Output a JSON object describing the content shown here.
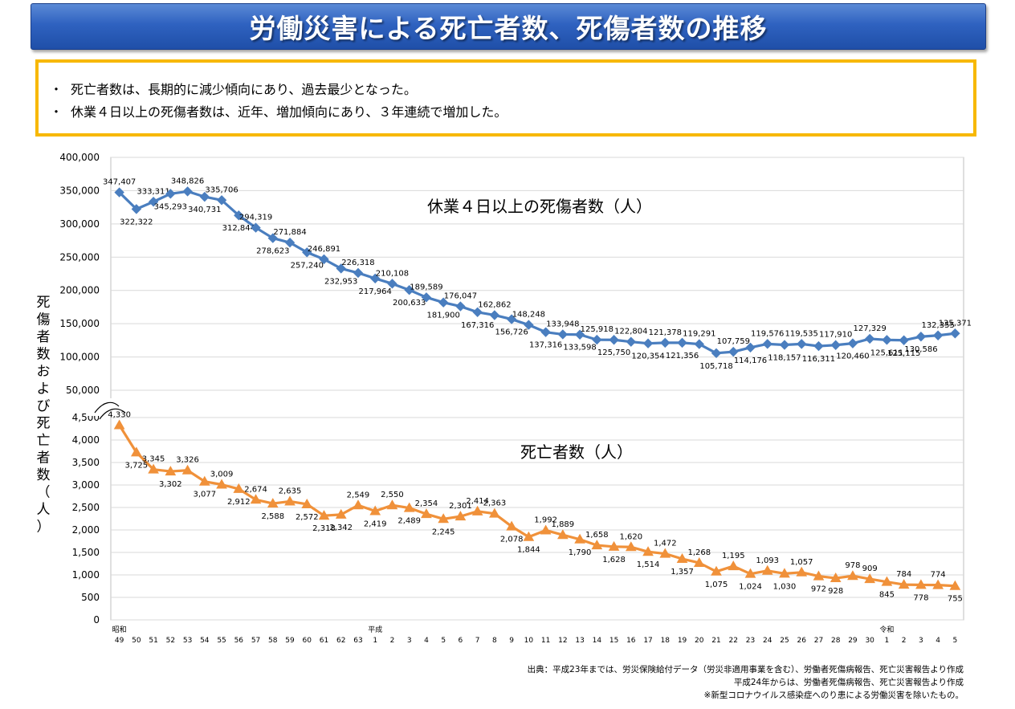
{
  "title": "労働災害による死亡者数、死傷者数の推移",
  "summary": [
    {
      "bullet": "・",
      "text": "死亡者数は、長期的に減少傾向にあり、過去最少となった。"
    },
    {
      "bullet": "・",
      "text": "休業４日以上の死傷者数は、近年、増加傾向にあり、３年連続で増加した。"
    }
  ],
  "source": [
    "出典：平成23年までは、労災保険給付データ（労災非適用事業を含む）、労働者死傷病報告、死亡災害報告より作成",
    "平成24年からは、労働者死傷病報告、死亡災害報告より作成",
    "※新型コロナウイルス感染症へのり患による労働災害を除いたもの。"
  ],
  "colors": {
    "banner_top": "#5b8ad6",
    "banner_bottom": "#1f4fa8",
    "summary_border": "#f7b800",
    "injury_series": "#4a7ebf",
    "death_series": "#f0913a",
    "gridline": "#d9d9d9"
  },
  "chart_data": {
    "type": "line",
    "ylabel": "死傷者数および死亡者数（人）",
    "categories": [
      "49",
      "50",
      "51",
      "52",
      "53",
      "54",
      "55",
      "56",
      "57",
      "58",
      "59",
      "60",
      "61",
      "62",
      "63",
      "1",
      "2",
      "3",
      "4",
      "5",
      "6",
      "7",
      "8",
      "9",
      "10",
      "11",
      "12",
      "13",
      "14",
      "15",
      "16",
      "17",
      "18",
      "19",
      "20",
      "21",
      "22",
      "23",
      "24",
      "25",
      "26",
      "27",
      "28",
      "29",
      "30",
      "1",
      "2",
      "3",
      "4",
      "5"
    ],
    "era_labels": [
      {
        "index": 0,
        "label": "昭和"
      },
      {
        "index": 15,
        "label": "平成"
      },
      {
        "index": 45,
        "label": "令和"
      }
    ],
    "upper_axis": {
      "ylim": [
        50000,
        400000
      ],
      "ticks": [
        "50,000",
        "100,000",
        "150,000",
        "200,000",
        "250,000",
        "300,000",
        "350,000",
        "400,000"
      ]
    },
    "lower_axis": {
      "ylim": [
        0,
        4500
      ],
      "ticks": [
        "0",
        "500",
        "1,000",
        "1,500",
        "2,000",
        "2,500",
        "3,000",
        "3,500",
        "4,000",
        "4,500"
      ]
    },
    "series": [
      {
        "name": "休業４日以上の死傷者数（人）",
        "axis": "upper",
        "marker": "diamond",
        "values": [
          347407,
          322322,
          333311,
          345293,
          348826,
          340731,
          335706,
          312844,
          294319,
          278623,
          271884,
          257240,
          246891,
          232953,
          226318,
          217964,
          210108,
          200633,
          189589,
          181900,
          176047,
          167316,
          162862,
          156726,
          148248,
          137316,
          133948,
          133598,
          125918,
          125750,
          122804,
          120354,
          121378,
          121356,
          119291,
          105718,
          107759,
          114176,
          119576,
          118157,
          119535,
          116311,
          117910,
          120460,
          127329,
          125611,
          125115,
          130586,
          132355,
          135371
        ],
        "labels": [
          "347,407",
          "322,322",
          "333,311",
          "345,293",
          "348,826",
          "340,731",
          "335,706",
          "312,844",
          "294,319",
          "278,623",
          "271,884",
          "257,240",
          "246,891",
          "232,953",
          "226,318",
          "217,964",
          "210,108",
          "200,633",
          "189,589",
          "181,900",
          "176,047",
          "167,316",
          "162,862",
          "156,726",
          "148,248",
          "137,316",
          "133,948",
          "133,598",
          "125,918",
          "125,750",
          "122,804",
          "120,354",
          "121,378",
          "121,356",
          "119,291",
          "105,718",
          "107,759",
          "114,176",
          "119,576",
          "118,157",
          "119,535",
          "116,311",
          "117,910",
          "120,460",
          "127,329",
          "125,611",
          "125,115",
          "130,586",
          "132,355",
          "135,371"
        ]
      },
      {
        "name": "死亡者数（人）",
        "axis": "lower",
        "marker": "triangle",
        "values": [
          4330,
          3725,
          3345,
          3302,
          3326,
          3077,
          3009,
          2912,
          2674,
          2588,
          2635,
          2572,
          2318,
          2342,
          2549,
          2419,
          2550,
          2489,
          2354,
          2245,
          2301,
          2414,
          2363,
          2078,
          1844,
          1992,
          1889,
          1790,
          1658,
          1628,
          1620,
          1514,
          1472,
          1357,
          1268,
          1075,
          1195,
          1024,
          1093,
          1030,
          1057,
          972,
          928,
          978,
          909,
          845,
          784,
          778,
          774,
          755
        ],
        "labels": [
          "4,330",
          "3,725",
          "3,345",
          "3,302",
          "3,326",
          "3,077",
          "3,009",
          "2,912",
          "2,674",
          "2,588",
          "2,635",
          "2,572",
          "2,318",
          "2,342",
          "2,549",
          "2,419",
          "2,550",
          "2,489",
          "2,354",
          "2,245",
          "2,301",
          "2,414",
          "2,363",
          "2,078",
          "1,844",
          "1,992",
          "1,889",
          "1,790",
          "1,658",
          "1,628",
          "1,620",
          "1,514",
          "1,472",
          "1,357",
          "1,268",
          "1,075",
          "1,195",
          "1,024",
          "1,093",
          "1,030",
          "1,057",
          "972",
          "928",
          "978",
          "909",
          "845",
          "784",
          "778",
          "774",
          "755"
        ]
      }
    ]
  }
}
